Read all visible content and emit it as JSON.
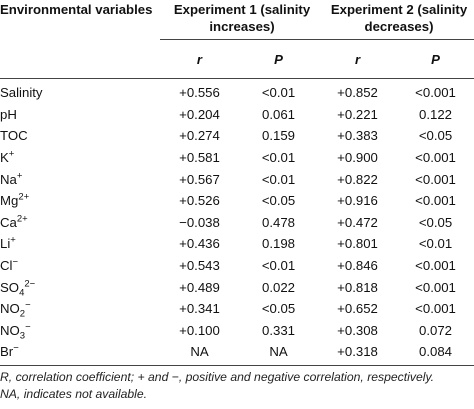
{
  "header": {
    "variables": "Environmental variables",
    "experiment1": "Experiment 1 (salinity increases)",
    "experiment2": "Experiment 2 (salinity decreases)",
    "r_label": "r",
    "p_label": "P"
  },
  "rows": [
    {
      "name": "Salinity",
      "sup": "",
      "sub": "",
      "r1": "+0.556",
      "p1": "<0.01",
      "r2": "+0.852",
      "p2": "<0.001"
    },
    {
      "name": "pH",
      "sup": "",
      "sub": "",
      "r1": "+0.204",
      "p1": "0.061",
      "r2": "+0.221",
      "p2": "0.122"
    },
    {
      "name": "TOC",
      "sup": "",
      "sub": "",
      "r1": "+0.274",
      "p1": "0.159",
      "r2": "+0.383",
      "p2": "<0.05"
    },
    {
      "name": "K",
      "sup": "+",
      "sub": "",
      "r1": "+0.581",
      "p1": "<0.01",
      "r2": "+0.900",
      "p2": "<0.001"
    },
    {
      "name": "Na",
      "sup": "+",
      "sub": "",
      "r1": "+0.567",
      "p1": "<0.01",
      "r2": "+0.822",
      "p2": "<0.001"
    },
    {
      "name": "Mg",
      "sup": "2+",
      "sub": "",
      "r1": "+0.526",
      "p1": "<0.05",
      "r2": "+0.916",
      "p2": "<0.001"
    },
    {
      "name": "Ca",
      "sup": "2+",
      "sub": "",
      "r1": "−0.038",
      "p1": "0.478",
      "r2": "+0.472",
      "p2": "<0.05"
    },
    {
      "name": "Li",
      "sup": "+",
      "sub": "",
      "r1": "+0.436",
      "p1": "0.198",
      "r2": "+0.801",
      "p2": "<0.01"
    },
    {
      "name": "Cl",
      "sup": "−",
      "sub": "",
      "r1": "+0.543",
      "p1": "<0.01",
      "r2": "+0.846",
      "p2": "<0.001"
    },
    {
      "name": "SO",
      "sub": "4",
      "sup": "2−",
      "r1": "+0.489",
      "p1": "0.022",
      "r2": "+0.818",
      "p2": "<0.001"
    },
    {
      "name": "NO",
      "sub": "2",
      "sup": "−",
      "r1": "+0.341",
      "p1": "<0.05",
      "r2": "+0.652",
      "p2": "<0.001"
    },
    {
      "name": "NO",
      "sub": "3",
      "sup": "−",
      "r1": "+0.100",
      "p1": "0.331",
      "r2": "+0.308",
      "p2": "0.072"
    },
    {
      "name": "Br",
      "sup": "−",
      "sub": "",
      "r1": "NA",
      "p1": "NA",
      "r2": "+0.318",
      "p2": "0.084"
    }
  ],
  "footnote": {
    "line1": "R, correlation coefficient; + and −, positive and negative correlation, respectively.",
    "line2": "NA, indicates not available."
  }
}
